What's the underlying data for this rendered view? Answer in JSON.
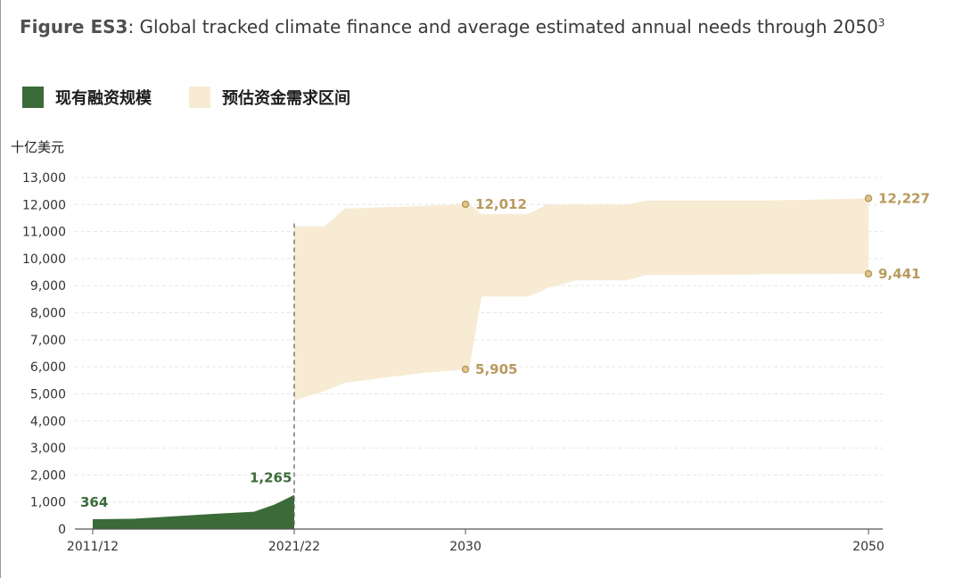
{
  "title": {
    "figure_label": "Figure ES3",
    "text": ": Global tracked climate finance and average estimated annual needs through 2050",
    "superscript": "3"
  },
  "legend": [
    {
      "label": "现有融资规模",
      "color": "#3b6b38"
    },
    {
      "label": "预估资金需求区间",
      "color": "#f7ebd3"
    }
  ],
  "unit_label": "十亿美元",
  "chart_data": {
    "type": "area",
    "ylabel": "十亿美元",
    "ylim": [
      0,
      13000
    ],
    "yticks": [
      "0",
      "1,000",
      "2,000",
      "3,000",
      "4,000",
      "5,000",
      "6,000",
      "7,000",
      "8,000",
      "9,000",
      "10,000",
      "11,000",
      "12,000",
      "13,000"
    ],
    "xlim": [
      2011.5,
      2050.3
    ],
    "xticks": [
      {
        "x": 2011.5,
        "label": "2011/12"
      },
      {
        "x": 2021.5,
        "label": "2021/22"
      },
      {
        "x": 2030,
        "label": "2030"
      },
      {
        "x": 2050,
        "label": "2050"
      }
    ],
    "grid": true,
    "legend_position": "top-left",
    "series": [
      {
        "name": "现有融资规模",
        "color": "#3b6b38",
        "x": [
          2011.5,
          2013.5,
          2015.5,
          2017.5,
          2019.5,
          2020.5,
          2021.5
        ],
        "values": [
          364,
          380,
          470,
          560,
          640,
          900,
          1265
        ]
      },
      {
        "name": "预估资金需求区间",
        "color": "#f7ebd3",
        "x": [
          2021.5,
          2023.0,
          2024.0,
          2026.0,
          2028.0,
          2030.0,
          2030.2,
          2030.8,
          2033.1,
          2033.8,
          2034.0,
          2035.5,
          2038.0,
          2039.0,
          2041.5,
          2045.0,
          2050.0
        ],
        "upper": [
          11200,
          11200,
          11850,
          11900,
          11950,
          12012,
          12000,
          11650,
          11650,
          11900,
          12000,
          12000,
          12000,
          12150,
          12150,
          12150,
          12227
        ],
        "lower": [
          4750,
          5100,
          5400,
          5600,
          5780,
          5905,
          6000,
          8600,
          8600,
          8800,
          8900,
          9200,
          9200,
          9400,
          9400,
          9420,
          9441
        ]
      }
    ],
    "annotations": [
      {
        "x": 2011.5,
        "y": 364,
        "label": "364",
        "color": "#3b6b38",
        "marker": false
      },
      {
        "x": 2021.5,
        "y": 1265,
        "label": "1,265",
        "color": "#3b6b38",
        "marker": false
      },
      {
        "x": 2030,
        "y": 12012,
        "label": "12,012",
        "color": "#b89a5e",
        "marker": true
      },
      {
        "x": 2030,
        "y": 5905,
        "label": "5,905",
        "color": "#b89a5e",
        "marker": true
      },
      {
        "x": 2050,
        "y": 12227,
        "label": "12,227",
        "color": "#b89a5e",
        "marker": true
      },
      {
        "x": 2050,
        "y": 9441,
        "label": "9,441",
        "color": "#b89a5e",
        "marker": true
      }
    ],
    "divider_x": 2021.5
  }
}
